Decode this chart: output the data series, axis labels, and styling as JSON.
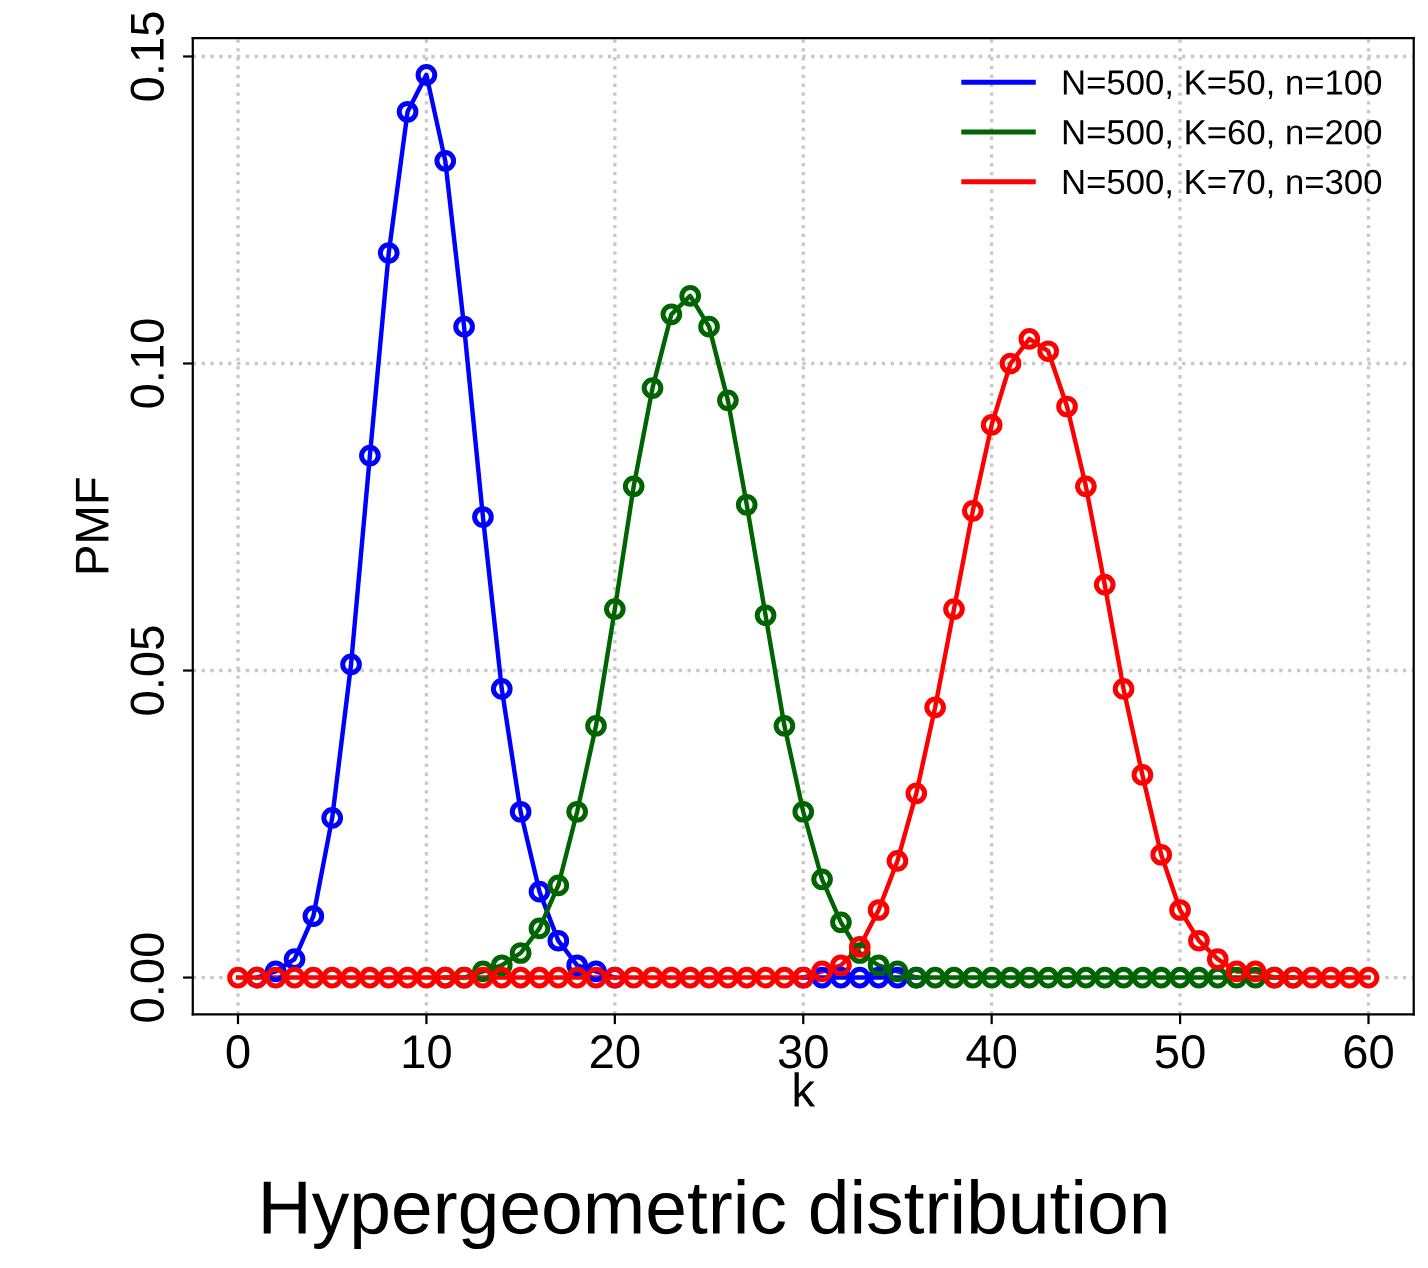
{
  "chart_data": {
    "type": "line",
    "xlabel": "k",
    "ylabel": "PMF",
    "annotations": [
      "Hypergeometric distribution"
    ],
    "x": [
      0,
      1,
      2,
      3,
      4,
      5,
      6,
      7,
      8,
      9,
      10,
      11,
      12,
      13,
      14,
      15,
      16,
      17,
      18,
      19,
      20,
      21,
      22,
      23,
      24,
      25,
      26,
      27,
      28,
      29,
      30,
      31,
      32,
      33,
      34,
      35,
      36,
      37,
      38,
      39,
      40,
      41,
      42,
      43,
      44,
      45,
      46,
      47,
      48,
      49,
      50,
      51,
      52,
      53,
      54,
      55,
      56,
      57,
      58,
      59,
      60
    ],
    "xlim": [
      -2.4,
      62.4
    ],
    "xticks": [
      0,
      10,
      20,
      30,
      40,
      50,
      60
    ],
    "ylim": [
      -0.006,
      0.153
    ],
    "yticks": [
      {
        "value": 0,
        "label": "0.00"
      },
      {
        "value": 0.05,
        "label": "0.05"
      },
      {
        "value": 0.1,
        "label": "0.10"
      },
      {
        "value": 0.15,
        "label": "0.15"
      }
    ],
    "grid": true,
    "legend": "top right",
    "marker": "circle",
    "series": [
      {
        "name": "N=500, K=50, n=100",
        "color": "#0000ff",
        "values": [
          null,
          0,
          0.001,
          0.003,
          0.01,
          0.026,
          0.051,
          0.085,
          0.118,
          0.141,
          0.147,
          0.133,
          0.106,
          0.075,
          0.047,
          0.027,
          0.014,
          0.006,
          0.002,
          0.001,
          0,
          null,
          null,
          null,
          null,
          null,
          null,
          null,
          null,
          null,
          0,
          0,
          0,
          0,
          0,
          0,
          0,
          null,
          null,
          null,
          null,
          null,
          null,
          null,
          null,
          null,
          null,
          null,
          null,
          null,
          null,
          null,
          null,
          null,
          null,
          null,
          null,
          null,
          null,
          null,
          null
        ]
      },
      {
        "name": "N=500, K=60, n=200",
        "color": "#006400",
        "values": [
          null,
          null,
          null,
          null,
          null,
          null,
          null,
          null,
          null,
          null,
          null,
          0,
          0,
          0.001,
          0.002,
          0.004,
          0.008,
          0.015,
          0.027,
          0.041,
          0.06,
          0.08,
          0.096,
          0.108,
          0.111,
          0.106,
          0.094,
          0.077,
          0.059,
          0.041,
          0.027,
          0.016,
          0.009,
          0.004,
          0.002,
          0.001,
          0,
          0,
          0,
          0,
          0,
          0,
          0,
          0,
          0,
          0,
          0,
          0,
          0,
          0,
          0,
          0,
          0,
          0,
          0,
          0,
          0,
          null,
          null,
          null,
          null
        ]
      },
      {
        "name": "N=500, K=70, n=300",
        "color": "#ff0000",
        "values": [
          0,
          0,
          0,
          0,
          0,
          0,
          0,
          0,
          0,
          0,
          0,
          0,
          0,
          0,
          0,
          0,
          0,
          0,
          0,
          0,
          0,
          0,
          0,
          0,
          0,
          0,
          0,
          0,
          0,
          0,
          0,
          0.001,
          0.002,
          0.005,
          0.011,
          0.019,
          0.03,
          0.044,
          0.06,
          0.076,
          0.09,
          0.1,
          0.104,
          0.102,
          0.093,
          0.08,
          0.064,
          0.047,
          0.033,
          0.02,
          0.011,
          0.006,
          0.003,
          0.001,
          0.001,
          0,
          0,
          0,
          0,
          0,
          0
        ]
      }
    ]
  }
}
